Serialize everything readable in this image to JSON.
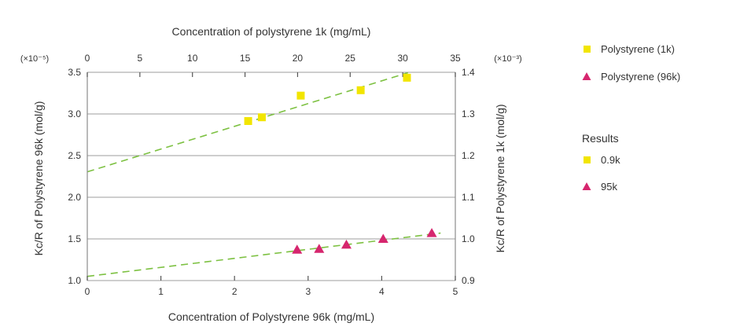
{
  "chart_data": {
    "type": "scatter",
    "title": "",
    "x_bottom": {
      "label": "Concentration of Polystyrene 96k (mg/mL)",
      "range": [
        0,
        5
      ],
      "ticks": [
        "0",
        "1",
        "2",
        "3",
        "4",
        "5"
      ]
    },
    "x_top": {
      "label": "Concentration of polystyrene 1k (mg/mL)",
      "range": [
        0,
        35
      ],
      "ticks": [
        "0",
        "5",
        "10",
        "15",
        "20",
        "25",
        "30",
        "35"
      ]
    },
    "y_left": {
      "label": "Kc/R of Polystyrene 96k (mol/g)",
      "multiplier": "(×10⁻⁵)",
      "range": [
        1.0,
        3.5
      ],
      "ticks": [
        "1.0",
        "1.5",
        "2.0",
        "2.5",
        "3.0",
        "3.5"
      ]
    },
    "y_right": {
      "label": "Kc/R of Polystyrene 1k (mol/g)",
      "multiplier": "(×10⁻³)",
      "range": [
        0.9,
        1.4
      ],
      "ticks": [
        "0.9",
        "1.0",
        "1.1",
        "1.2",
        "1.3",
        "1.4"
      ]
    },
    "grid": "horizontal",
    "series": [
      {
        "name": "Polystyrene (1k)",
        "marker": "square",
        "color": "#f2e500",
        "axes": "top-right",
        "points": [
          [
            15.3,
            1.283
          ],
          [
            16.6,
            1.292
          ],
          [
            20.3,
            1.344
          ],
          [
            26.0,
            1.357
          ],
          [
            30.4,
            1.387
          ]
        ],
        "fit": {
          "color": "#7dc142",
          "x": [
            0,
            30.5
          ],
          "y": [
            1.161,
            1.399
          ]
        }
      },
      {
        "name": "Polystyrene (96k)",
        "marker": "triangle",
        "color": "#d6266e",
        "axes": "bottom-left",
        "points": [
          [
            2.85,
            1.37
          ],
          [
            3.15,
            1.38
          ],
          [
            3.52,
            1.43
          ],
          [
            4.02,
            1.5
          ],
          [
            4.68,
            1.57
          ]
        ],
        "fit": {
          "color": "#7dc142",
          "x": [
            0,
            4.8
          ],
          "y": [
            1.05,
            1.57
          ]
        }
      }
    ],
    "legend": {
      "placement": "right",
      "items": [
        {
          "label": "Polystyrene (1k)",
          "marker": "square",
          "color": "#f2e500"
        },
        {
          "label": "Polystyrene (96k)",
          "marker": "triangle",
          "color": "#d6266e"
        }
      ],
      "results_heading": "Results",
      "results": [
        {
          "label": "0.9k",
          "marker": "square",
          "color": "#f2e500"
        },
        {
          "label": "95k",
          "marker": "triangle",
          "color": "#d6266e"
        }
      ]
    }
  }
}
